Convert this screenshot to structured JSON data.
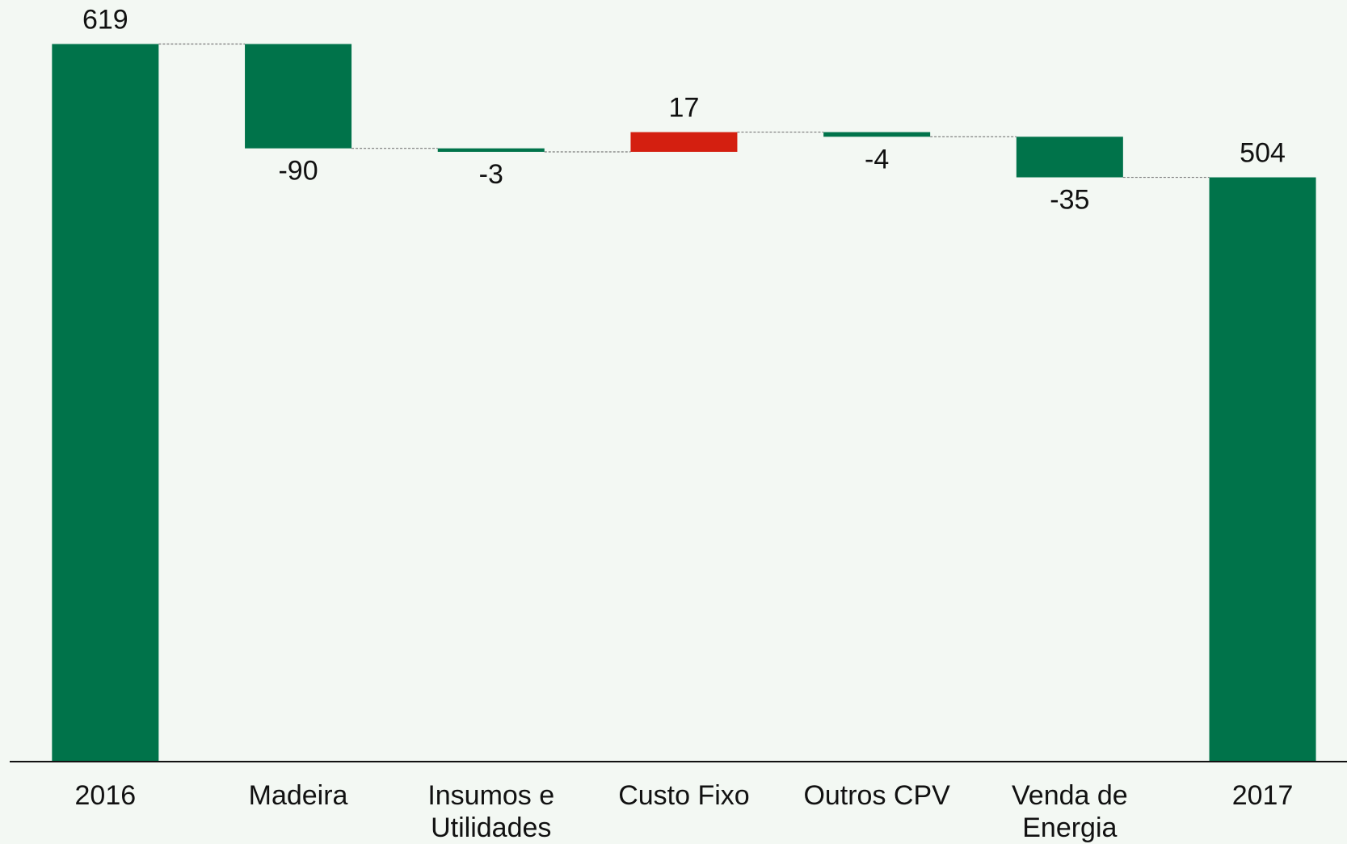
{
  "chart_data": {
    "type": "waterfall",
    "categories": [
      "2016",
      "Madeira",
      "Insumos e Utilidades",
      "Custo Fixo",
      "Outros CPV",
      "Venda de Energia",
      "2017"
    ],
    "values": [
      619,
      -90,
      -3,
      17,
      -4,
      -35,
      504
    ],
    "totals": [
      true,
      false,
      false,
      false,
      false,
      false,
      true
    ],
    "colors": [
      "#00734a",
      "#00734a",
      "#00734a",
      "#d41f10",
      "#00734a",
      "#00734a",
      "#00734a"
    ],
    "ylim": [
      0,
      650
    ],
    "grid": false
  }
}
